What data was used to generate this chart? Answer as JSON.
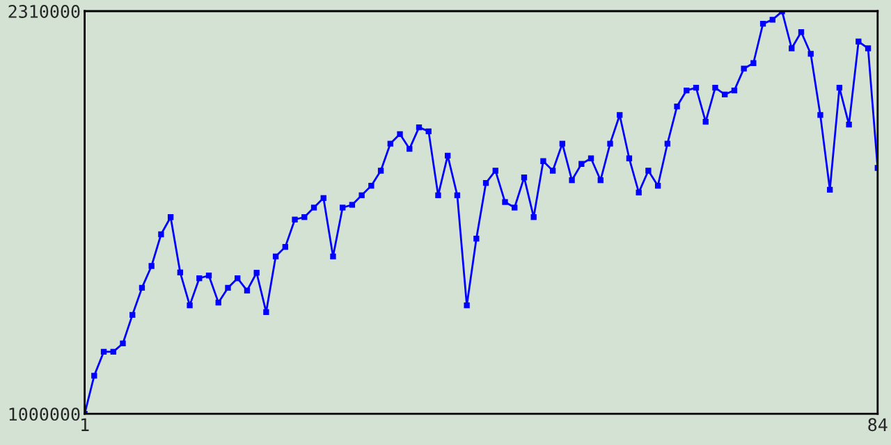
{
  "chart_data": {
    "type": "line",
    "x": [
      1,
      2,
      3,
      4,
      5,
      6,
      7,
      8,
      9,
      10,
      11,
      12,
      13,
      14,
      15,
      16,
      17,
      18,
      19,
      20,
      21,
      22,
      23,
      24,
      25,
      26,
      27,
      28,
      29,
      30,
      31,
      32,
      33,
      34,
      35,
      36,
      37,
      38,
      39,
      40,
      41,
      42,
      43,
      44,
      45,
      46,
      47,
      48,
      49,
      50,
      51,
      52,
      53,
      54,
      55,
      56,
      57,
      58,
      59,
      60,
      61,
      62,
      63,
      64,
      65,
      66,
      67,
      68,
      69,
      70,
      71,
      72,
      73,
      74,
      75,
      76,
      77,
      78,
      79,
      80,
      81,
      82,
      83,
      84
    ],
    "series": [
      {
        "color": "#0000ff",
        "values": [
          1000000,
          1124000,
          1202000,
          1202000,
          1229000,
          1322000,
          1410000,
          1481000,
          1584000,
          1640000,
          1460000,
          1353000,
          1441000,
          1450000,
          1362000,
          1410000,
          1441000,
          1401000,
          1459000,
          1331000,
          1512000,
          1543000,
          1632000,
          1640000,
          1671000,
          1702000,
          1512000,
          1671000,
          1680000,
          1711000,
          1742000,
          1791000,
          1879000,
          1910000,
          1862000,
          1932000,
          1919000,
          1711000,
          1840000,
          1711000,
          1353000,
          1570000,
          1751000,
          1791000,
          1689000,
          1671000,
          1769000,
          1640000,
          1822000,
          1791000,
          1879000,
          1760000,
          1813000,
          1831000,
          1760000,
          1879000,
          1972000,
          1831000,
          1720000,
          1791000,
          1742000,
          1879000,
          2000000,
          2052000,
          2061000,
          1950000,
          2061000,
          2039000,
          2052000,
          2123000,
          2141000,
          2269000,
          2282000,
          2309000,
          2189000,
          2242000,
          2171000,
          1972000,
          1729000,
          2061000,
          1941000,
          2211000,
          2189000,
          1800000
        ]
      }
    ],
    "xlim": [
      1,
      84
    ],
    "xticks": [
      1,
      84
    ],
    "ylim": [
      1000000,
      2310000
    ],
    "yticks": [
      1000000,
      2310000
    ],
    "marker": "square",
    "line_style": "solid"
  }
}
